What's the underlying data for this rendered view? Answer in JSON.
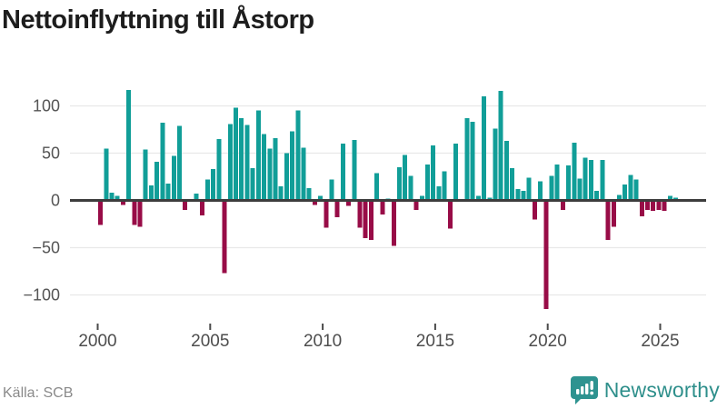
{
  "title": "Nettoinflyttning till Åstorp",
  "source": "Källa: SCB",
  "brand": {
    "name": "Newsworthy",
    "color": "#2e8f8b",
    "icon": "bar-chart-speech-bubble-icon"
  },
  "chart_data": {
    "type": "bar",
    "title": "Nettoinflyttning till Åstorp",
    "frequency": "quarterly",
    "start": "2000-Q1",
    "end": "2025-Q3",
    "series": [
      {
        "name": "Nettoinflyttning",
        "values": [
          -26,
          55,
          8,
          5,
          -5,
          117,
          -26,
          -28,
          54,
          16,
          41,
          82,
          18,
          47,
          79,
          -10,
          0,
          7,
          -16,
          22,
          33,
          65,
          -77,
          81,
          98,
          87,
          80,
          34,
          95,
          70,
          55,
          66,
          15,
          50,
          73,
          95,
          56,
          13,
          -5,
          5,
          -29,
          22,
          -18,
          60,
          -6,
          64,
          -29,
          -40,
          -42,
          29,
          -15,
          2,
          -48,
          35,
          48,
          26,
          -10,
          5,
          38,
          58,
          15,
          31,
          -30,
          60,
          0,
          87,
          83,
          5,
          110,
          3,
          76,
          116,
          63,
          34,
          12,
          10,
          24,
          -20,
          20,
          -115,
          26,
          38,
          -10,
          37,
          61,
          23,
          45,
          43,
          10,
          43,
          -42,
          -28,
          6,
          17,
          27,
          22,
          -17,
          -10,
          -11,
          -10,
          -11,
          5,
          3
        ]
      }
    ],
    "x_tick_labels": [
      "2000",
      "2005",
      "2010",
      "2015",
      "2020",
      "2025"
    ],
    "x_tick_years": [
      2000,
      2005,
      2010,
      2015,
      2020,
      2025
    ],
    "y_ticks": [
      100,
      50,
      0,
      -50,
      -100
    ],
    "ylim": [
      -125,
      125
    ],
    "grid": true,
    "legend": "none",
    "colors": {
      "positive": "#119e98",
      "negative": "#980c47",
      "zero_line": "#3d3d3d",
      "gridline": "#e8e8e8",
      "axis_text": "#4d4d4d"
    }
  }
}
